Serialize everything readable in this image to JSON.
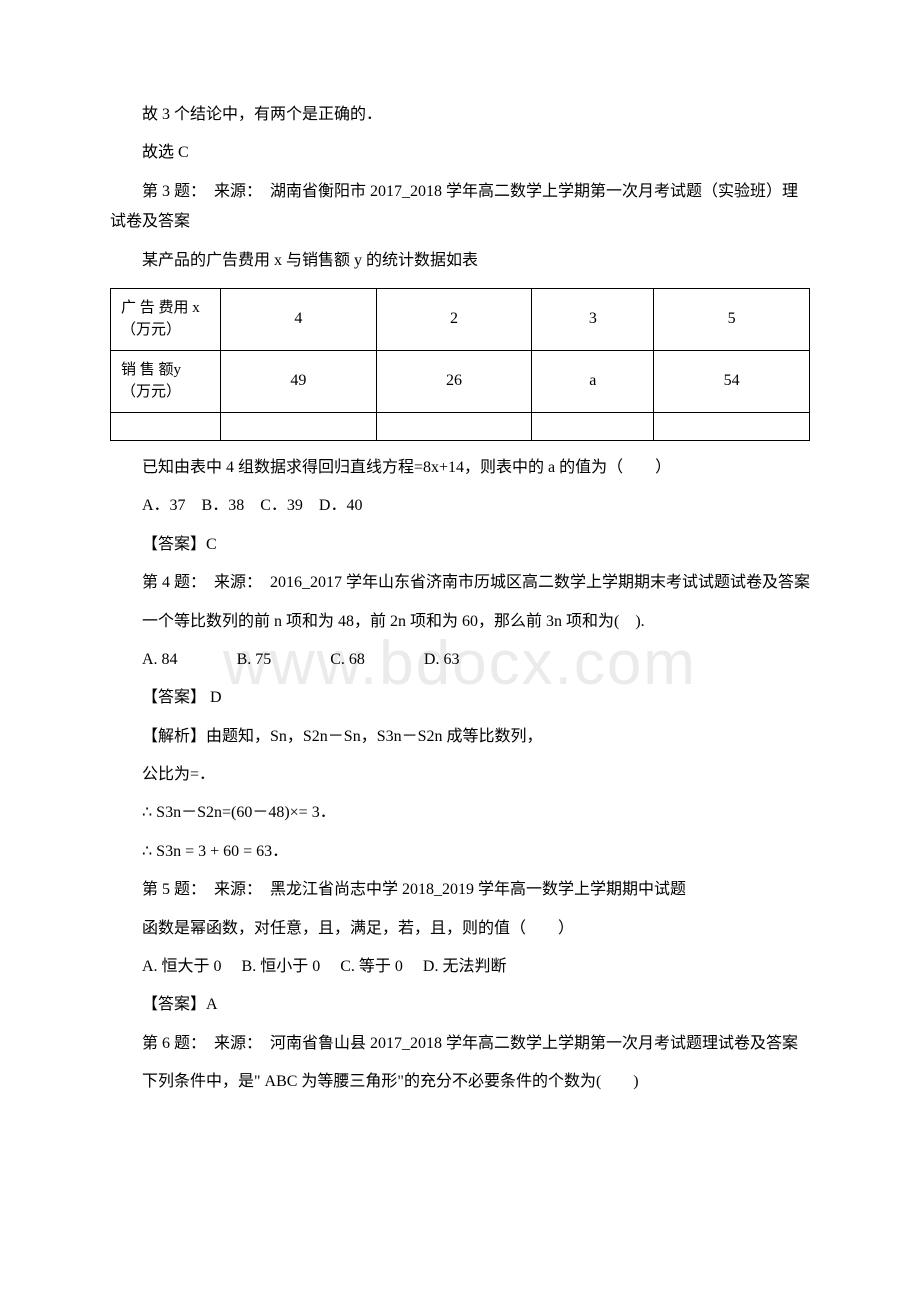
{
  "watermark_text": "www.bdocx.com",
  "top_conclusion_1": "故 3 个结论中，有两个是正确的．",
  "top_conclusion_2": "故选 C",
  "q3": {
    "title": "第 3 题：　来源：　湖南省衡阳市 2017_2018 学年高二数学上学期第一次月考试题（实验班）理试卷及答案",
    "desc": "某产品的广告费用 x 与销售额 y 的统计数据如表",
    "table": {
      "row1_header": "广 告 费用 x （万元）",
      "row1_vals": [
        "4",
        "2",
        "3",
        "5"
      ],
      "row2_header": "销 售 额y （万元）",
      "row2_vals": [
        "49",
        "26",
        "a",
        "54"
      ]
    },
    "question": "已知由表中 4 组数据求得回归直线方程=8x+14，则表中的 a 的值为（　　）",
    "options": "A．37　B．38　C．39　D．40",
    "answer": "【答案】C"
  },
  "q4": {
    "title": "第 4 题：　来源：　2016_2017 学年山东省济南市历城区高二数学上学期期末考试试题试卷及答案",
    "desc": "一个等比数列的前 n 项和为 48，前 2n 项和为 60，那么前 3n 项和为(　).",
    "opts": {
      "a": "A. 84",
      "b": "B. 75",
      "c": "C. 68",
      "d": "D. 63"
    },
    "answer": "【答案】 D",
    "expl1": "【解析】由题知，Sn，S2n－Sn，S3n－S2n 成等比数列，",
    "expl2": "公比为=．",
    "expl3": "∴ S3n－S2n=(60－48)×= 3．",
    "expl4": "∴ S3n = 3 + 60 = 63．"
  },
  "q5": {
    "title": "第 5 题：　来源：　黑龙江省尚志中学 2018_2019 学年高一数学上学期期中试题",
    "desc": "函数是幂函数，对任意，且，满足，若，且，则的值（　　）",
    "options": "A. 恒大于 0　  B. 恒小于 0　  C. 等于 0　  D. 无法判断",
    "answer": "【答案】A"
  },
  "q6": {
    "title": "第 6 题：　来源：　河南省鲁山县 2017_2018 学年高二数学上学期第一次月考试题理试卷及答案",
    "desc": "下列条件中，是\" ABC 为等腰三角形\"的充分不必要条件的个数为(　　)"
  }
}
